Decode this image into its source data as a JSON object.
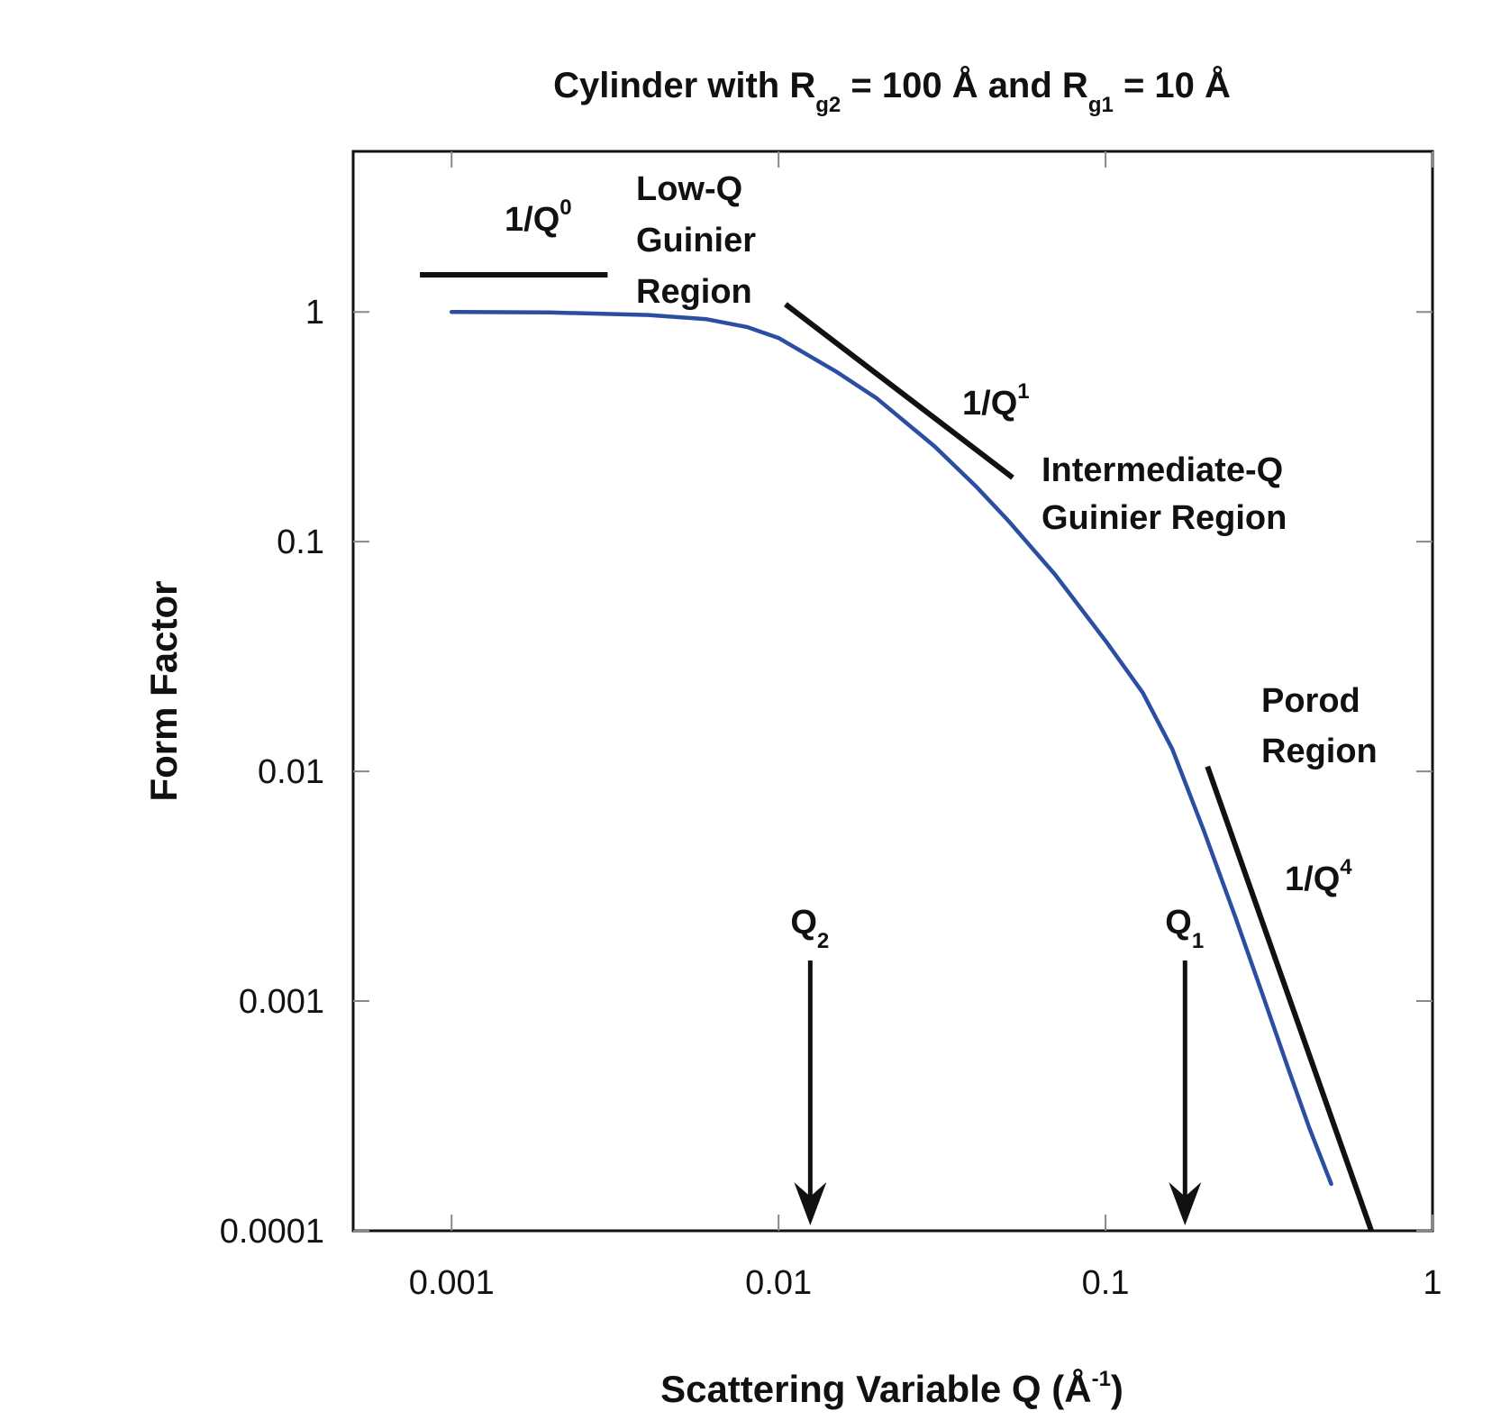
{
  "chart_data": {
    "type": "line",
    "title": {
      "prefix": "Cylinder with R",
      "sub1": "g2",
      "middle": " = 100 Å and R",
      "sub2": "g1",
      "suffix": " = 10 Å"
    },
    "xlabel": {
      "text": "Scattering Variable Q (Å",
      "sup": "-1",
      "close": ")"
    },
    "ylabel": "Form Factor",
    "x_scale": "log",
    "y_scale": "log",
    "xlim": [
      0.0005,
      1
    ],
    "ylim": [
      0.0001,
      5
    ],
    "x_ticks": [
      {
        "value": 0.001,
        "label": "0.001"
      },
      {
        "value": 0.01,
        "label": "0.01"
      },
      {
        "value": 0.1,
        "label": "0.1"
      },
      {
        "value": 1,
        "label": "1"
      }
    ],
    "y_ticks": [
      {
        "value": 1,
        "label": "1"
      },
      {
        "value": 0.1,
        "label": "0.1"
      },
      {
        "value": 0.01,
        "label": "0.01"
      },
      {
        "value": 0.001,
        "label": "0.001"
      },
      {
        "value": 0.0001,
        "label": "0.0001"
      }
    ],
    "grid": false,
    "series": [
      {
        "color": "#2b4ea2",
        "x": [
          0.001,
          0.002,
          0.004,
          0.006,
          0.008,
          0.01,
          0.015,
          0.02,
          0.03,
          0.04,
          0.05,
          0.07,
          0.1,
          0.13,
          0.16,
          0.2,
          0.25,
          0.3,
          0.36,
          0.42,
          0.49
        ],
        "y": [
          1.0,
          0.995,
          0.97,
          0.93,
          0.86,
          0.77,
          0.55,
          0.42,
          0.26,
          0.175,
          0.125,
          0.072,
          0.037,
          0.022,
          0.0125,
          0.0055,
          0.0023,
          0.0011,
          0.00052,
          0.00028,
          0.00016
        ]
      }
    ],
    "slope_lines": [
      {
        "label": "1/Q",
        "sup": "0",
        "x": [
          0.0008,
          0.003
        ],
        "y": [
          1.45,
          1.45
        ]
      },
      {
        "label": "1/Q",
        "sup": "1",
        "x": [
          0.0105,
          0.052
        ],
        "y": [
          1.08,
          0.19
        ]
      },
      {
        "label": "1/Q",
        "sup": "4",
        "x": [
          0.205,
          0.65
        ],
        "y": [
          0.0105,
          0.0001
        ]
      }
    ],
    "region_labels": [
      {
        "lines": [
          "Low-Q",
          "Guinier",
          "Region"
        ]
      },
      {
        "lines": [
          "Intermediate-Q",
          "Guinier Region"
        ]
      },
      {
        "lines": [
          "Porod",
          "Region"
        ]
      }
    ],
    "markers": [
      {
        "label": "Q",
        "sub": "2",
        "x": 0.0125
      },
      {
        "label": "Q",
        "sub": "1",
        "x": 0.175
      }
    ]
  }
}
